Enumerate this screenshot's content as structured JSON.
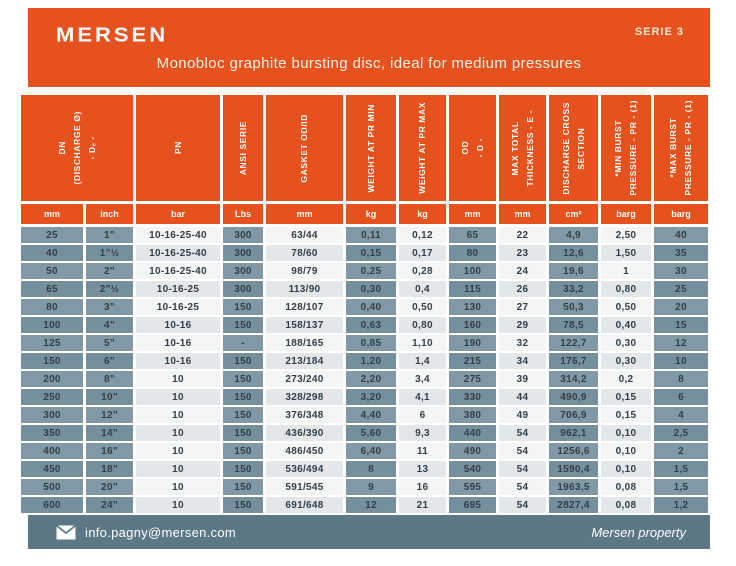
{
  "brand": {
    "logo_text": "MERSEN",
    "serie_badge": "SERIE 3"
  },
  "banner": {
    "title": "Monobloc graphite bursting disc, ideal for medium pressures"
  },
  "table": {
    "column_groups": [
      {
        "id": "dn-discharge",
        "label": "DN\n(DISCHARGE Ø)\n- Dₑ -",
        "span": 2
      },
      {
        "id": "pn",
        "label": "PN",
        "span": 1
      },
      {
        "id": "ansi-serie",
        "label": "ANSI SERIE",
        "span": 1
      },
      {
        "id": "gasket-od-id",
        "label": "GASKET OD/ID",
        "span": 1
      },
      {
        "id": "weight-at-pr-min",
        "label": "WEIGHT AT PR MIN",
        "span": 1
      },
      {
        "id": "weight-at-pr-max",
        "label": "WEIGHT AT PR MAX",
        "span": 1
      },
      {
        "id": "od",
        "label": "OD\n- D -",
        "span": 1
      },
      {
        "id": "max-total-thickness",
        "label": "MAX TOTAL\nTHICKNESS - E -",
        "span": 1
      },
      {
        "id": "discharge-cross-section",
        "label": "DISCHARGE CROSS\nSECTION",
        "span": 1
      },
      {
        "id": "min-burst-pressure",
        "label": "*MIN BURST\nPRESSURE - PR - (1)",
        "span": 1
      },
      {
        "id": "max-burst-pressure",
        "label": "*MAX BURST\nPRESSURE - PR - (1)",
        "span": 1
      }
    ],
    "units": [
      "mm",
      "inch",
      "bar",
      "Lbs",
      "mm",
      "kg",
      "kg",
      "mm",
      "mm",
      "cm²",
      "barg",
      "barg"
    ],
    "column_shaded": [
      true,
      true,
      false,
      true,
      false,
      true,
      false,
      true,
      false,
      true,
      false,
      true
    ],
    "rows": [
      [
        "25",
        "1\"",
        "10-16-25-40",
        "300",
        "63/44",
        "0,11",
        "0,12",
        "65",
        "22",
        "4,9",
        "2,50",
        "40"
      ],
      [
        "40",
        "1\"½",
        "10-16-25-40",
        "300",
        "78/60",
        "0,15",
        "0,17",
        "80",
        "23",
        "12,6",
        "1,50",
        "35"
      ],
      [
        "50",
        "2\"",
        "10-16-25-40",
        "300",
        "98/79",
        "0,25",
        "0,28",
        "100",
        "24",
        "19,6",
        "1",
        "30"
      ],
      [
        "65",
        "2\"½",
        "10-16-25",
        "300",
        "113/90",
        "0,30",
        "0,4",
        "115",
        "26",
        "33,2",
        "0,80",
        "25"
      ],
      [
        "80",
        "3\"",
        "10-16-25",
        "150",
        "128/107",
        "0,40",
        "0,50",
        "130",
        "27",
        "50,3",
        "0,50",
        "20"
      ],
      [
        "100",
        "4\"",
        "10-16",
        "150",
        "158/137",
        "0,63",
        "0,80",
        "160",
        "29",
        "78,5",
        "0,40",
        "15"
      ],
      [
        "125",
        "5\"",
        "10-16",
        "-",
        "188/165",
        "0,85",
        "1,10",
        "190",
        "32",
        "122,7",
        "0,30",
        "12"
      ],
      [
        "150",
        "6\"",
        "10-16",
        "150",
        "213/184",
        "1,20",
        "1,4",
        "215",
        "34",
        "176,7",
        "0,30",
        "10"
      ],
      [
        "200",
        "8\"",
        "10",
        "150",
        "273/240",
        "2,20",
        "3,4",
        "275",
        "39",
        "314,2",
        "0,2",
        "8"
      ],
      [
        "250",
        "10\"",
        "10",
        "150",
        "328/298",
        "3,20",
        "4,1",
        "330",
        "44",
        "490,9",
        "0,15",
        "6"
      ],
      [
        "300",
        "12\"",
        "10",
        "150",
        "376/348",
        "4,40",
        "6",
        "380",
        "49",
        "706,9",
        "0,15",
        "4"
      ],
      [
        "350",
        "14\"",
        "10",
        "150",
        "436/390",
        "5,60",
        "9,3",
        "440",
        "54",
        "962,1",
        "0,10",
        "2,5"
      ],
      [
        "400",
        "16\"",
        "10",
        "150",
        "486/450",
        "6,40",
        "11",
        "490",
        "54",
        "1256,6",
        "0,10",
        "2"
      ],
      [
        "450",
        "18\"",
        "10",
        "150",
        "536/494",
        "8",
        "13",
        "540",
        "54",
        "1590,4",
        "0,10",
        "1,5"
      ],
      [
        "500",
        "20\"",
        "10",
        "150",
        "591/545",
        "9",
        "16",
        "595",
        "54",
        "1963,5",
        "0,08",
        "1,5"
      ],
      [
        "600",
        "24\"",
        "10",
        "150",
        "691/648",
        "12",
        "21",
        "695",
        "54",
        "2827,4",
        "0,08",
        "1,2"
      ]
    ]
  },
  "footer": {
    "icon": "envelope-icon",
    "email": "info.pagny@mersen.com",
    "property_note": "Mersen property"
  },
  "colors": {
    "brand_orange": "#E5521D",
    "slate_cell": "#8099A4",
    "slate_cell_alt": "#75909C",
    "light_cell": "#F4F5F5",
    "light_cell_alt": "#E3E7E9",
    "footer_bg": "#5B7884",
    "text_dark": "#323F49",
    "serie_text": "#F6E8D0"
  }
}
